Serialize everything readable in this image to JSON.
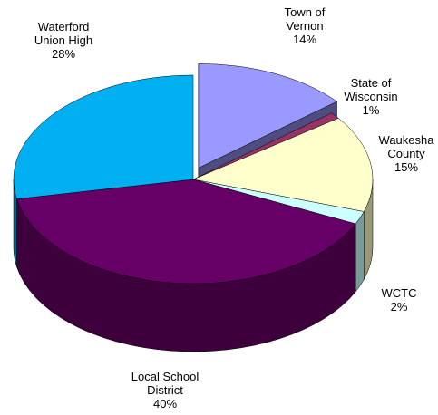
{
  "chart_data": {
    "type": "pie",
    "categories": [
      "Town of Vernon",
      "State of Wisconsin",
      "Waukesha County",
      "WCTC",
      "Local School District",
      "Waterford Union High"
    ],
    "values": [
      14,
      1,
      15,
      2,
      40,
      28
    ],
    "value_labels": [
      "14%",
      "1%",
      "15%",
      "2%",
      "40%",
      "28%"
    ],
    "colors": [
      "#9999ff",
      "#993366",
      "#ffffcc",
      "#ccffff",
      "#660066",
      "#00b0f0"
    ]
  }
}
